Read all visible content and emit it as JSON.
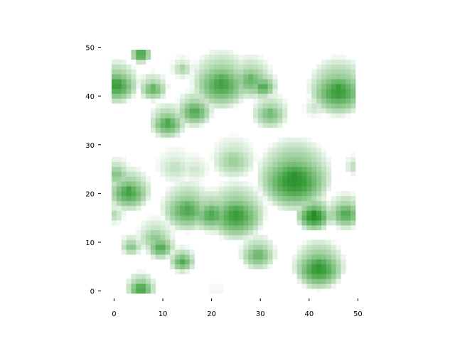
{
  "chart_data": {
    "type": "heatmap",
    "title": "",
    "xlabel": "",
    "ylabel": "",
    "xlim": [
      0,
      50
    ],
    "ylim": [
      0,
      50
    ],
    "x_ticks": [
      0,
      10,
      20,
      30,
      40,
      50
    ],
    "y_ticks": [
      0,
      10,
      20,
      30,
      40,
      50
    ],
    "x_tick_labels": [
      "0",
      "10",
      "20",
      "30",
      "40",
      "50"
    ],
    "y_tick_labels": [
      "0",
      "10",
      "20",
      "30",
      "40",
      "50"
    ],
    "colormap": "white-to-green",
    "color_low": "#ffffff",
    "color_high": "#006400",
    "grid_size": [
      50,
      50
    ],
    "grid": false,
    "spines": false,
    "blobs": [
      {
        "x": 5.5,
        "y": 49.0,
        "r": 1.5,
        "v": 0.8
      },
      {
        "x": 0.5,
        "y": 43.0,
        "r": 3.0,
        "v": 0.8
      },
      {
        "x": 8.0,
        "y": 42.0,
        "r": 2.0,
        "v": 0.6
      },
      {
        "x": 14.0,
        "y": 46.0,
        "r": 1.5,
        "v": 0.35
      },
      {
        "x": 22.0,
        "y": 43.5,
        "r": 4.0,
        "v": 0.75
      },
      {
        "x": 28.0,
        "y": 44.0,
        "r": 3.0,
        "v": 0.6
      },
      {
        "x": 30.5,
        "y": 42.5,
        "r": 2.0,
        "v": 0.7
      },
      {
        "x": 46.0,
        "y": 42.0,
        "r": 4.0,
        "v": 0.8
      },
      {
        "x": 16.5,
        "y": 37.5,
        "r": 2.5,
        "v": 0.7
      },
      {
        "x": 11.0,
        "y": 35.0,
        "r": 2.5,
        "v": 0.7
      },
      {
        "x": 32.0,
        "y": 37.0,
        "r": 2.5,
        "v": 0.55
      },
      {
        "x": 41.0,
        "y": 38.0,
        "r": 1.5,
        "v": 0.2
      },
      {
        "x": 24.5,
        "y": 27.5,
        "r": 3.0,
        "v": 0.4
      },
      {
        "x": 12.5,
        "y": 26.0,
        "r": 2.5,
        "v": 0.25
      },
      {
        "x": 16.5,
        "y": 25.5,
        "r": 2.0,
        "v": 0.2
      },
      {
        "x": 0.5,
        "y": 24.5,
        "r": 2.0,
        "v": 0.5
      },
      {
        "x": 37.0,
        "y": 24.0,
        "r": 5.0,
        "v": 0.9
      },
      {
        "x": 3.0,
        "y": 21.0,
        "r": 3.0,
        "v": 0.75
      },
      {
        "x": 49.5,
        "y": 26.0,
        "r": 1.5,
        "v": 0.3
      },
      {
        "x": 15.0,
        "y": 17.5,
        "r": 3.5,
        "v": 0.7
      },
      {
        "x": 20.0,
        "y": 16.5,
        "r": 3.0,
        "v": 0.7
      },
      {
        "x": 25.0,
        "y": 16.5,
        "r": 4.0,
        "v": 0.8
      },
      {
        "x": 41.0,
        "y": 16.0,
        "r": 2.5,
        "v": 0.95
      },
      {
        "x": 47.5,
        "y": 16.5,
        "r": 2.5,
        "v": 0.7
      },
      {
        "x": 0.0,
        "y": 16.0,
        "r": 1.5,
        "v": 0.3
      },
      {
        "x": 8.5,
        "y": 11.5,
        "r": 2.5,
        "v": 0.45
      },
      {
        "x": 3.5,
        "y": 9.5,
        "r": 1.5,
        "v": 0.5
      },
      {
        "x": 9.5,
        "y": 9.5,
        "r": 2.0,
        "v": 0.7
      },
      {
        "x": 29.5,
        "y": 8.0,
        "r": 2.5,
        "v": 0.6
      },
      {
        "x": 14.0,
        "y": 6.5,
        "r": 1.8,
        "v": 0.7
      },
      {
        "x": 42.0,
        "y": 5.5,
        "r": 3.5,
        "v": 0.85
      },
      {
        "x": 5.5,
        "y": 1.0,
        "r": 2.0,
        "v": 0.75
      },
      {
        "x": 21.0,
        "y": 0.5,
        "r": 2.0,
        "v": 0.05
      }
    ]
  }
}
